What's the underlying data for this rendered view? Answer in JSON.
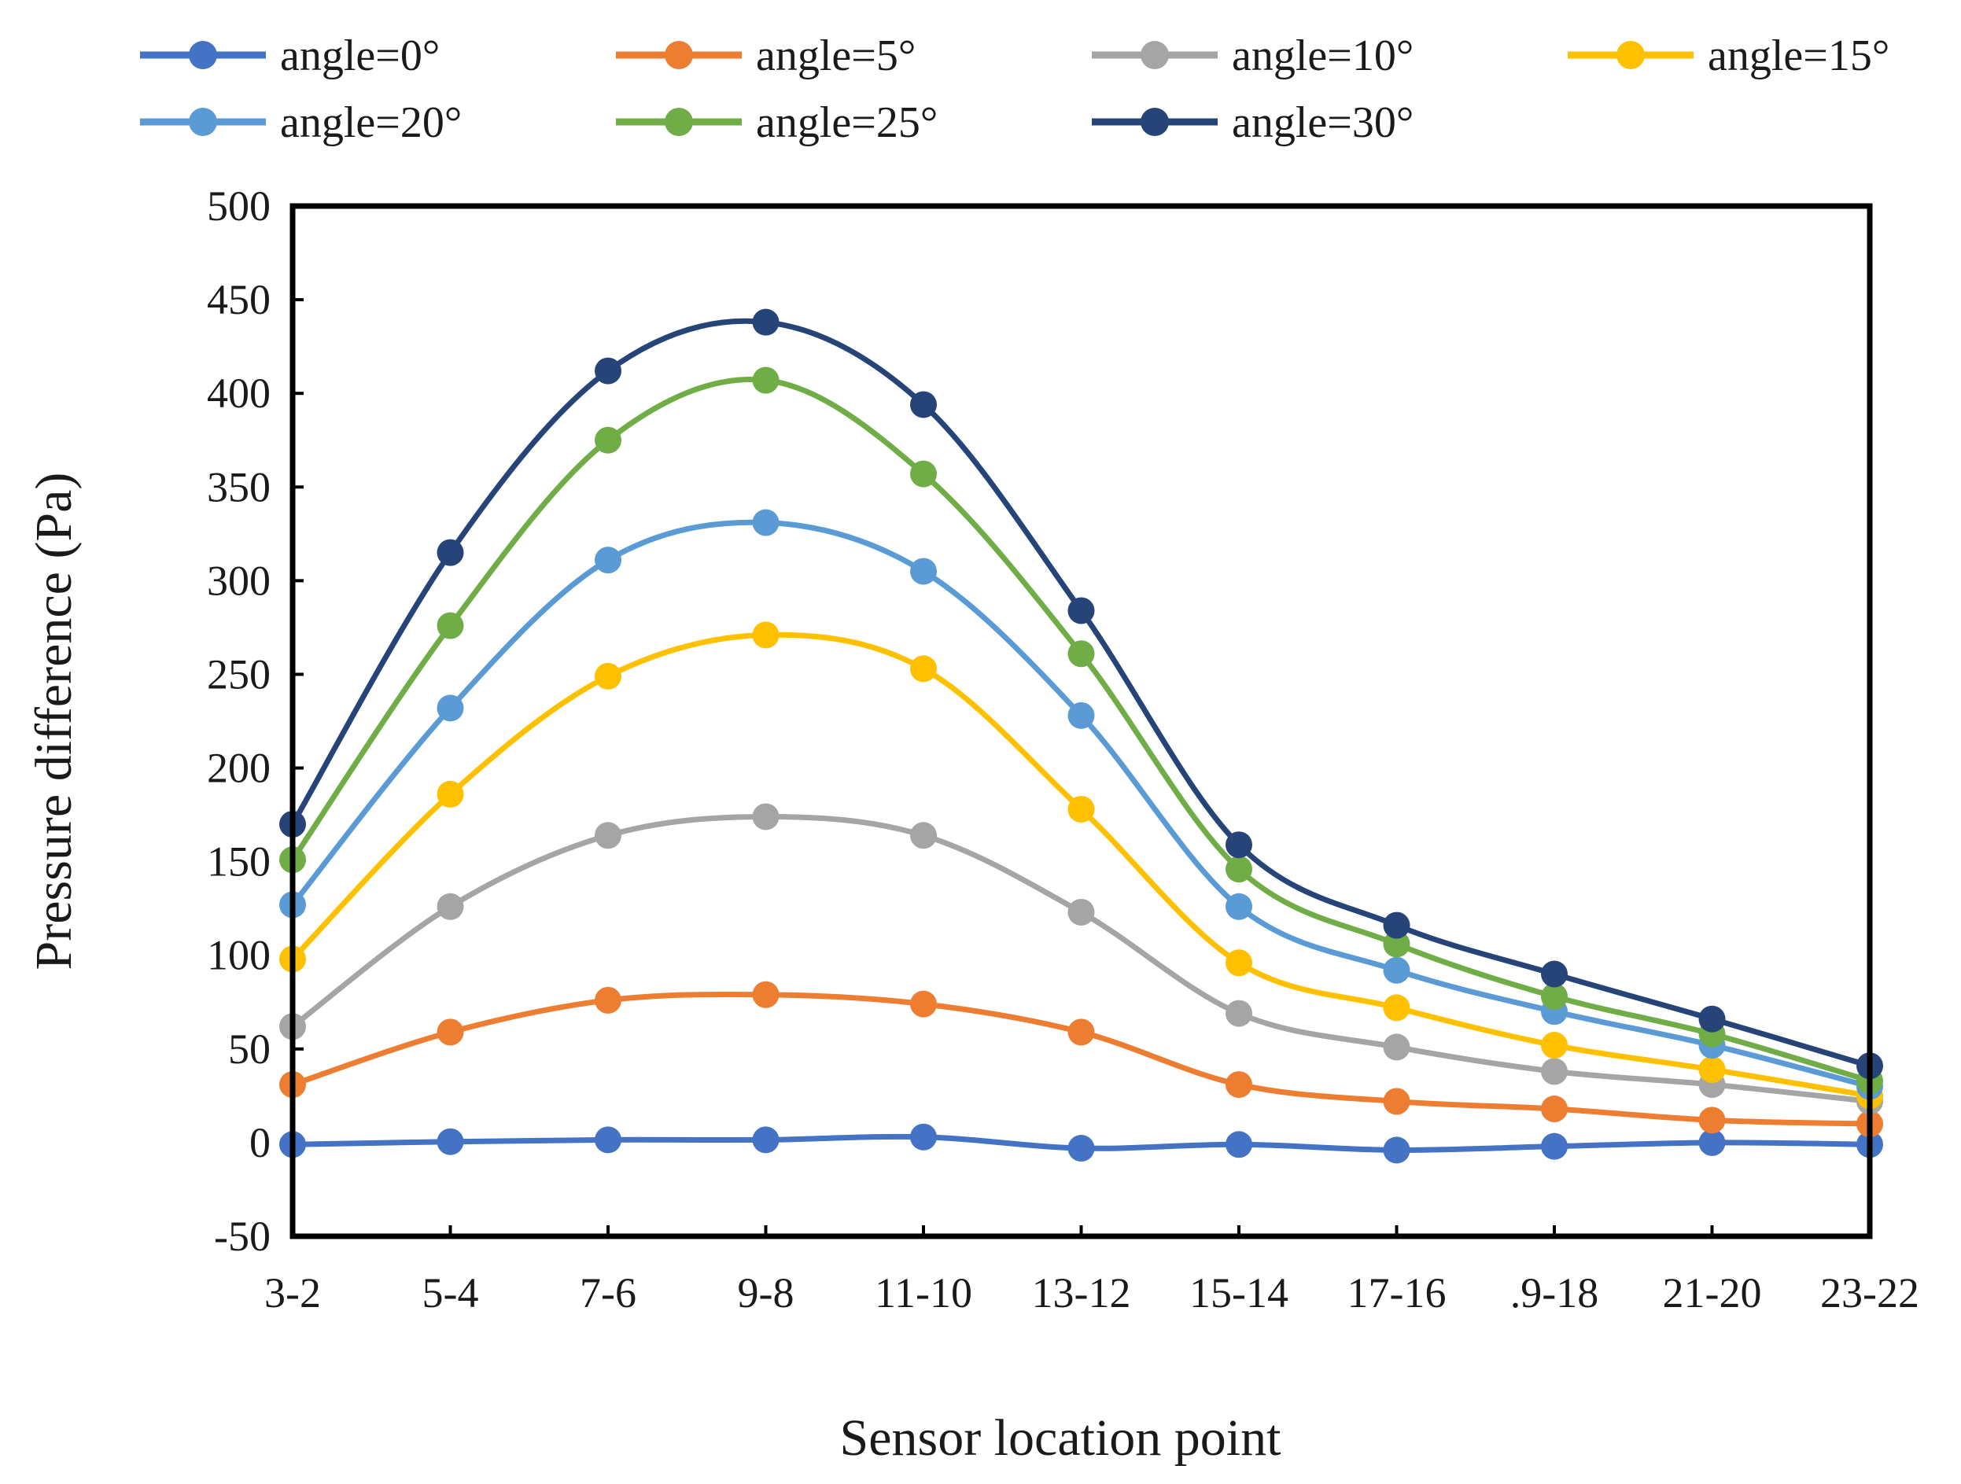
{
  "chart_data": {
    "type": "line",
    "title": "",
    "xlabel": "Sensor location point",
    "ylabel": "Pressure difference (Pa)",
    "ylim": [
      -50,
      500
    ],
    "yticks": [
      -50,
      0,
      50,
      100,
      150,
      200,
      250,
      300,
      350,
      400,
      450,
      500
    ],
    "grid": false,
    "legend_position": "top",
    "categories": [
      "3-2",
      "5-4",
      "7-6",
      "9-8",
      "11-10",
      "13-12",
      "15-14",
      "17-16",
      ".9-18",
      "21-20",
      "23-22"
    ],
    "series": [
      {
        "name": "angle=0°",
        "color": "#4472C4",
        "values": [
          -1,
          0.5,
          1.5,
          1.5,
          3,
          -3,
          -1,
          -4,
          -2,
          0,
          -1
        ]
      },
      {
        "name": "angle=5°",
        "color": "#ED7D31",
        "values": [
          31,
          59,
          76,
          79,
          74,
          59,
          31,
          22,
          18,
          12,
          10
        ]
      },
      {
        "name": "angle=10°",
        "color": "#A5A5A5",
        "values": [
          62,
          126,
          164,
          174,
          164,
          123,
          69,
          51,
          38,
          31,
          22
        ]
      },
      {
        "name": "angle=15°",
        "color": "#FFC000",
        "values": [
          98,
          186,
          249,
          271,
          253,
          178,
          96,
          72,
          52,
          39,
          25
        ]
      },
      {
        "name": "angle=20°",
        "color": "#5B9BD5",
        "values": [
          127,
          232,
          311,
          331,
          305,
          228,
          126,
          92,
          70,
          52,
          30
        ]
      },
      {
        "name": "angle=25°",
        "color": "#70AD47",
        "values": [
          151,
          276,
          375,
          407,
          357,
          261,
          146,
          106,
          78,
          58,
          33
        ]
      },
      {
        "name": "angle=30°",
        "color": "#264478",
        "values": [
          170,
          315,
          412,
          438,
          394,
          284,
          159,
          116,
          90,
          66,
          41
        ]
      }
    ]
  }
}
